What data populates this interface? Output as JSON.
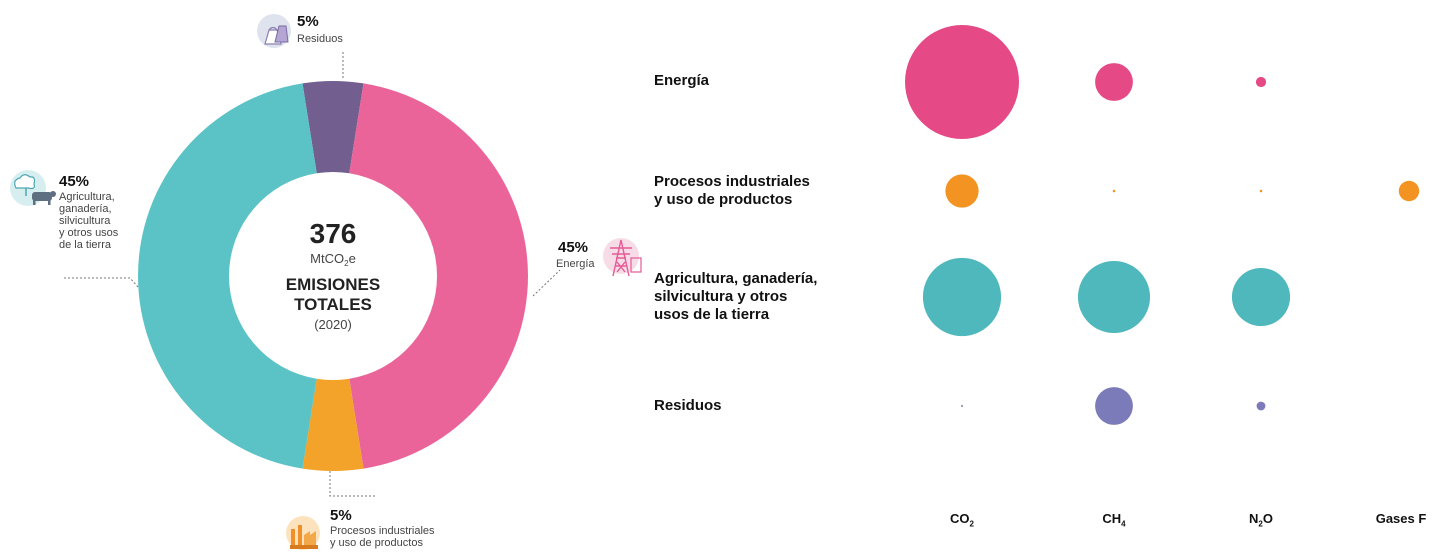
{
  "chart_data": [
    {
      "type": "pie",
      "variant": "donut",
      "center": {
        "value": "376",
        "unit": "MtCO",
        "unit_sub": "2",
        "unit_suffix": "e",
        "title_line1": "EMISIONES",
        "title_line2": "TOTALES",
        "year": "(2020)"
      },
      "slices": [
        {
          "key": "energia",
          "label": "Energía",
          "percent_label": "45%",
          "value": 45,
          "color": "#ea6499",
          "icon": "power-tower-icon"
        },
        {
          "key": "procesos",
          "label": "Procesos industriales y uso de productos",
          "label_lines": [
            "Procesos industriales",
            "y uso de productos"
          ],
          "percent_label": "5%",
          "value": 5,
          "color": "#f4a32a",
          "icon": "factory-icon"
        },
        {
          "key": "agricultura",
          "label": "Agricultura, ganadería, silvicultura y otros usos de la tierra",
          "label_lines": [
            "Agricultura,",
            "ganadería,",
            "silvicultura",
            "y otros usos",
            "de la tierra"
          ],
          "percent_label": "45%",
          "value": 45,
          "color": "#5bc3c6",
          "icon": "cow-tree-icon"
        },
        {
          "key": "residuos",
          "label": "Residuos",
          "percent_label": "5%",
          "value": 5,
          "color": "#735f8f",
          "icon": "trash-bag-icon"
        }
      ]
    },
    {
      "type": "bubble",
      "rows": [
        {
          "key": "energia",
          "label_lines": [
            "Energía"
          ],
          "color": "#e54a87",
          "values": [
            100,
            11,
            0.8,
            0
          ]
        },
        {
          "key": "procesos",
          "label_lines": [
            "Procesos industriales",
            "y uso de productos"
          ],
          "color": "#f39321",
          "values": [
            8.5,
            0.05,
            0.05,
            3.2
          ]
        },
        {
          "key": "agricultura",
          "label_lines": [
            "Agricultura, ganadería,",
            "silvicultura y otros",
            "usos de la tierra"
          ],
          "color": "#4fb8bc",
          "values": [
            47,
            40,
            26,
            0
          ]
        },
        {
          "key": "residuos",
          "label_lines": [
            "Residuos"
          ],
          "color": "#7c7bb9",
          "values": [
            0.02,
            11,
            0.6,
            0
          ]
        }
      ],
      "columns": [
        {
          "base": "CO",
          "sub": "2",
          "tail": ""
        },
        {
          "base": "CH",
          "sub": "4",
          "tail": ""
        },
        {
          "base": "N",
          "sub": "2",
          "tail": "O"
        },
        {
          "base": "Gases F",
          "sub": "",
          "tail": ""
        }
      ]
    }
  ]
}
